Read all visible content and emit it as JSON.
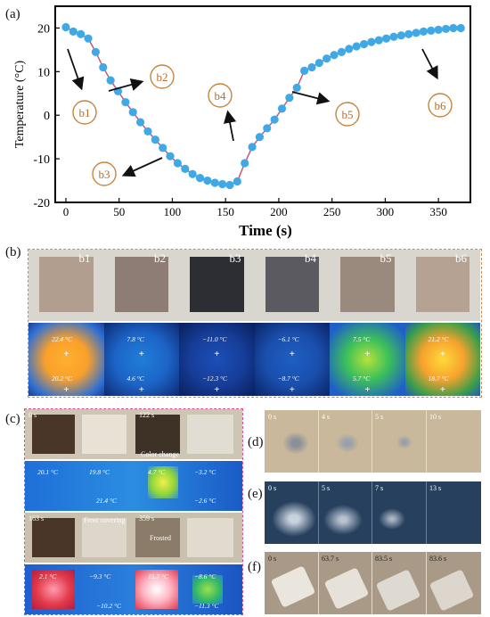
{
  "panel_labels": {
    "a": "(a)",
    "b": "(b)",
    "c": "(c)",
    "d": "(d)",
    "e": "(e)",
    "f": "(f)"
  },
  "chart_data": {
    "type": "line",
    "xlabel": "Time (s)",
    "ylabel": "Temperature (°C)",
    "xlim": [
      -10,
      380
    ],
    "ylim": [
      -20,
      25
    ],
    "xticks": [
      0,
      50,
      100,
      150,
      200,
      250,
      300,
      350
    ],
    "yticks": [
      -20,
      -10,
      0,
      10,
      20
    ],
    "series": [
      {
        "color": "#3fa9e6",
        "line_color": "#c8557a",
        "x": [
          0,
          7,
          14,
          21,
          28,
          35,
          42,
          49,
          56,
          63,
          70,
          77,
          84,
          91,
          98,
          105,
          112,
          119,
          126,
          133,
          140,
          147,
          154,
          161,
          168,
          175,
          182,
          189,
          196,
          203,
          210,
          217,
          224,
          231,
          238,
          245,
          252,
          259,
          266,
          273,
          280,
          287,
          294,
          301,
          308,
          315,
          322,
          329,
          336,
          343,
          350,
          357,
          364,
          371
        ],
        "y": [
          20.2,
          19.2,
          18.6,
          17.6,
          14.5,
          11,
          8,
          5.5,
          3,
          0.7,
          -1.6,
          -3.7,
          -5.6,
          -7.5,
          -9.4,
          -11,
          -12.3,
          -13.5,
          -14.4,
          -15,
          -15.5,
          -15.8,
          -16,
          -15.2,
          -11,
          -7.3,
          -5,
          -3,
          -1,
          1.5,
          4,
          6.3,
          10.2,
          11,
          12,
          13,
          13.8,
          14.5,
          15.2,
          15.8,
          16.3,
          16.8,
          17.2,
          17.6,
          18,
          18.3,
          18.6,
          18.9,
          19.2,
          19.4,
          19.6,
          19.8,
          20,
          20
        ]
      }
    ],
    "annotations": [
      "b1",
      "b2",
      "b3",
      "b4",
      "b5",
      "b6"
    ]
  },
  "b_panels": [
    {
      "label": "b1",
      "top": "22.4 °C",
      "bottom": "20.2 °C"
    },
    {
      "label": "b2",
      "top": "7.8 °C",
      "bottom": "4.6 °C"
    },
    {
      "label": "b3",
      "top": "−11.0 °C",
      "bottom": "−12.3 °C"
    },
    {
      "label": "b4",
      "top": "−6.1 °C",
      "bottom": "−8.7 °C"
    },
    {
      "label": "b5",
      "top": "7.5 °C",
      "bottom": "5.7 °C"
    },
    {
      "label": "b6",
      "top": "21.2 °C",
      "bottom": "18.7 °C"
    }
  ],
  "c_panel": {
    "times": [
      "0 s",
      "122 s",
      "163 s",
      "359 s"
    ],
    "notes": [
      "Color change",
      "Frost covering",
      "Frosted"
    ],
    "thermo_row1": [
      "20.1 °C",
      "19.8 °C",
      "21.4 °C",
      "4.7 °C",
      "−3.2 °C",
      "−2.6 °C"
    ],
    "thermo_row2": [
      "2.1 °C",
      "−9.3 °C",
      "−10.2 °C",
      "15.7 °C",
      "−8.6 °C",
      "−11.3 °C"
    ]
  },
  "d_panel": {
    "times": [
      "0 s",
      "4 s",
      "5 s",
      "10 s"
    ]
  },
  "e_panel": {
    "times": [
      "0 s",
      "5 s",
      "7 s",
      "13 s"
    ]
  },
  "f_panel": {
    "times": [
      "0 s",
      "63.7 s",
      "83.5 s",
      "83.6 s"
    ]
  }
}
